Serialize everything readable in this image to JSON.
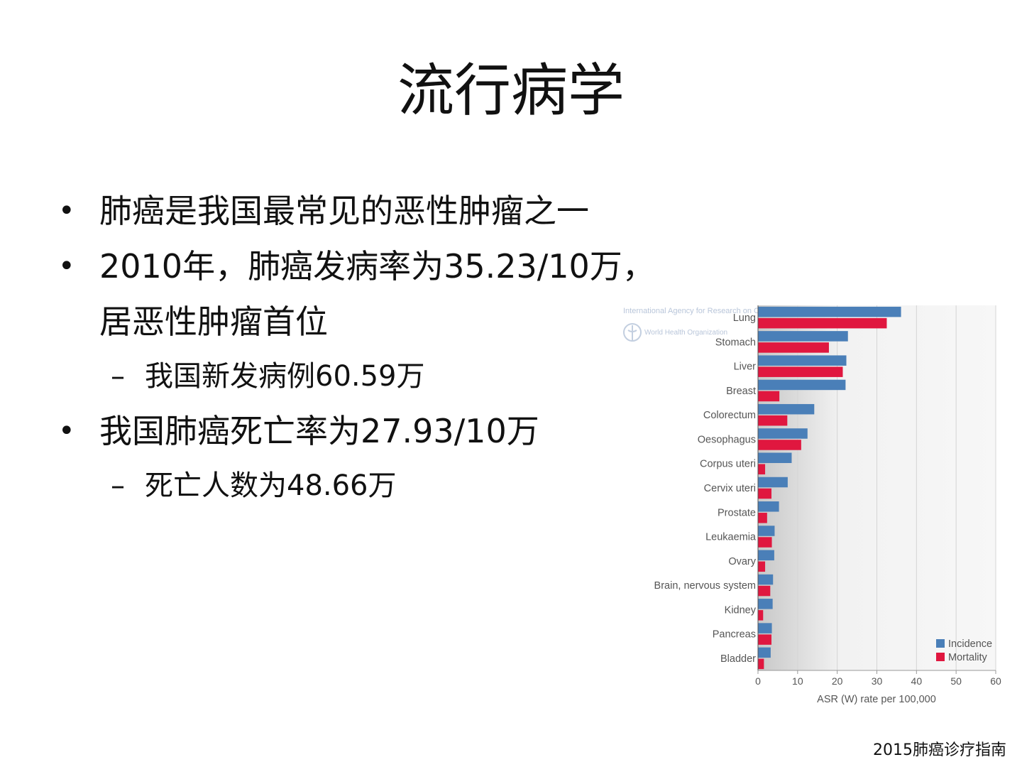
{
  "slide": {
    "title": "流行病学",
    "bullets": [
      {
        "symbol": "•",
        "lines": [
          "肺癌是我国最常见的恶性肿瘤之一"
        ]
      },
      {
        "symbol": "•",
        "lines": [
          "2010年，肺癌发病率为35.23/10万，",
          "居恶性肿瘤首位"
        ],
        "sub": [
          {
            "symbol": "–",
            "text": "我国新发病例60.59万"
          }
        ]
      },
      {
        "symbol": "•",
        "lines": [
          "我国肺癌死亡率为27.93/10万"
        ],
        "sub": [
          {
            "symbol": "–",
            "text": "死亡人数为48.66万"
          }
        ]
      }
    ],
    "footer": "2015肺癌诊疗指南"
  },
  "chart_data": {
    "type": "bar",
    "orientation": "horizontal",
    "categories": [
      "Lung",
      "Stomach",
      "Liver",
      "Breast",
      "Colorectum",
      "Oesophagus",
      "Corpus uteri",
      "Cervix uteri",
      "Prostate",
      "Leukaemia",
      "Ovary",
      "Brain, nervous system",
      "Kidney",
      "Pancreas",
      "Bladder"
    ],
    "series": [
      {
        "name": "Incidence",
        "color": "#4a7fb8",
        "values": [
          36.1,
          22.7,
          22.3,
          22.1,
          14.2,
          12.5,
          8.5,
          7.5,
          5.3,
          4.2,
          4.1,
          3.8,
          3.7,
          3.5,
          3.2
        ]
      },
      {
        "name": "Mortality",
        "color": "#e0173f",
        "values": [
          32.5,
          17.9,
          21.4,
          5.4,
          7.4,
          10.9,
          1.8,
          3.4,
          2.3,
          3.5,
          1.8,
          3.1,
          1.3,
          3.4,
          1.5
        ]
      }
    ],
    "xlabel": "ASR (W) rate per 100,000",
    "xlim": [
      0,
      60
    ],
    "xticks": [
      0,
      10,
      20,
      30,
      40,
      50,
      60
    ],
    "grid": true,
    "legend_position": "bottom-right",
    "watermark": {
      "line1": "International Agency for Research on Cancer",
      "line2": "World Health Organization"
    }
  }
}
